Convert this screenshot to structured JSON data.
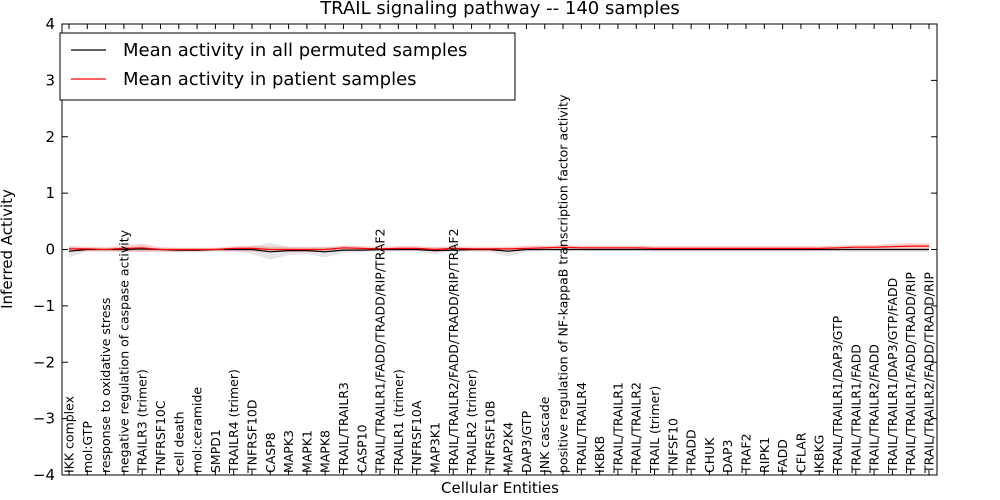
{
  "chart_data": {
    "type": "line",
    "title": "TRAIL signaling pathway -- 140 samples",
    "xlabel": "Cellular Entities",
    "ylabel": "Inferred Activity",
    "ylim": [
      -4,
      4
    ],
    "yticks": [
      -4,
      -3,
      -2,
      -1,
      0,
      1,
      2,
      3,
      4
    ],
    "ytick_labels": [
      "−4",
      "−3",
      "−2",
      "−1",
      "0",
      "1",
      "2",
      "3",
      "4"
    ],
    "grid": false,
    "legend_position": "top-left",
    "categories": [
      "IKK complex",
      "mol:GTP",
      "response to oxidative stress",
      "negative regulation of caspase activity",
      "TRAILR3 (trimer)",
      "TNFRSF10C",
      "cell death",
      "mol:ceramide",
      "SMPD1",
      "TRAILR4 (trimer)",
      "TNFRSF10D",
      "CASP8",
      "MAPK3",
      "MAPK1",
      "MAPK8",
      "TRAIL/TRAILR3",
      "CASP10",
      "TRAIL/TRAILR1/FADD/TRADD/RIP/TRAF2",
      "TRAILR1 (trimer)",
      "TNFRSF10A",
      "MAP3K1",
      "TRAIL/TRAILR2/FADD/TRADD/RIP/TRAF2",
      "TRAILR2 (trimer)",
      "TNFRSF10B",
      "MAP2K4",
      "DAP3/GTP",
      "JNK cascade",
      "positive regulation of NF-kappaB transcription factor activity",
      "TRAIL/TRAILR4",
      "IKBKB",
      "TRAIL/TRAILR1",
      "TRAIL/TRAILR2",
      "TRAIL (trimer)",
      "TNFSF10",
      "TRADD",
      "CHUK",
      "DAP3",
      "TRAF2",
      "RIPK1",
      "FADD",
      "CFLAR",
      "IKBKG",
      "TRAIL/TRAILR1/DAP3/GTP",
      "TRAIL/TRAILR1/FADD",
      "TRAIL/TRAILR2/FADD",
      "TRAIL/TRAILR1/DAP3/GTP/FADD",
      "TRAIL/TRAILR1/FADD/TRADD/RIP",
      "TRAIL/TRAILR2/FADD/TRADD/RIP"
    ],
    "series": [
      {
        "name": "Mean activity in all permuted samples",
        "color": "#000000",
        "values": [
          -0.03,
          0.0,
          0.0,
          0.0,
          0.01,
          0.0,
          -0.01,
          -0.01,
          0.0,
          0.0,
          0.0,
          -0.04,
          -0.02,
          -0.02,
          -0.04,
          -0.01,
          -0.01,
          0.0,
          0.0,
          0.0,
          -0.02,
          -0.01,
          0.0,
          0.0,
          -0.03,
          0.0,
          0.0,
          0.0,
          0.0,
          0.0,
          0.0,
          0.0,
          0.0,
          0.0,
          0.0,
          0.0,
          0.0,
          0.0,
          0.0,
          0.0,
          0.0,
          0.0,
          0.0,
          0.0,
          0.0,
          0.0,
          0.0,
          0.0
        ],
        "band_upper": [
          0.05,
          0.02,
          0.02,
          0.03,
          0.03,
          0.02,
          0.02,
          0.02,
          0.02,
          0.03,
          0.06,
          0.12,
          0.05,
          0.04,
          0.05,
          0.04,
          0.03,
          0.02,
          0.02,
          0.02,
          0.04,
          0.02,
          0.02,
          0.02,
          0.03,
          0.02,
          0.02,
          0.02,
          0.02,
          0.02,
          0.02,
          0.02,
          0.02,
          0.02,
          0.02,
          0.02,
          0.02,
          0.02,
          0.02,
          0.02,
          0.02,
          0.02,
          0.02,
          0.02,
          0.02,
          0.02,
          0.02,
          0.02
        ],
        "band_lower": [
          -0.14,
          -0.03,
          -0.03,
          -0.03,
          -0.03,
          -0.03,
          -0.05,
          -0.05,
          -0.03,
          -0.04,
          -0.08,
          -0.18,
          -0.1,
          -0.08,
          -0.14,
          -0.06,
          -0.05,
          -0.03,
          -0.03,
          -0.04,
          -0.08,
          -0.04,
          -0.03,
          -0.04,
          -0.12,
          -0.04,
          -0.03,
          -0.03,
          -0.03,
          -0.03,
          -0.03,
          -0.03,
          -0.04,
          -0.04,
          -0.04,
          -0.04,
          -0.04,
          -0.04,
          -0.04,
          -0.04,
          -0.04,
          -0.03,
          -0.04,
          -0.04,
          -0.04,
          -0.04,
          -0.04,
          -0.04
        ]
      },
      {
        "name": "Mean activity in patient samples",
        "color": "#ff0000",
        "values": [
          0.01,
          0.01,
          0.0,
          0.02,
          0.03,
          0.0,
          0.0,
          0.0,
          0.0,
          0.02,
          0.02,
          0.0,
          0.0,
          0.0,
          0.0,
          0.03,
          0.02,
          0.01,
          0.02,
          0.02,
          0.0,
          0.02,
          0.01,
          0.01,
          0.01,
          0.02,
          0.03,
          0.04,
          0.03,
          0.03,
          0.03,
          0.03,
          0.02,
          0.02,
          0.02,
          0.02,
          0.02,
          0.02,
          0.02,
          0.02,
          0.02,
          0.02,
          0.03,
          0.04,
          0.04,
          0.05,
          0.06,
          0.06
        ],
        "band_upper": [
          0.06,
          0.05,
          0.04,
          0.07,
          0.1,
          0.04,
          0.03,
          0.03,
          0.03,
          0.06,
          0.07,
          0.05,
          0.04,
          0.04,
          0.04,
          0.07,
          0.06,
          0.05,
          0.06,
          0.06,
          0.04,
          0.06,
          0.05,
          0.05,
          0.05,
          0.07,
          0.07,
          0.08,
          0.07,
          0.07,
          0.07,
          0.07,
          0.06,
          0.06,
          0.06,
          0.06,
          0.06,
          0.06,
          0.06,
          0.06,
          0.06,
          0.06,
          0.07,
          0.08,
          0.08,
          0.1,
          0.11,
          0.11
        ],
        "band_lower": [
          -0.04,
          -0.03,
          -0.03,
          -0.04,
          -0.05,
          -0.04,
          -0.04,
          -0.03,
          -0.03,
          -0.03,
          -0.03,
          -0.04,
          -0.04,
          -0.04,
          -0.04,
          -0.02,
          -0.02,
          -0.03,
          -0.02,
          -0.02,
          -0.03,
          -0.02,
          -0.03,
          -0.03,
          -0.03,
          -0.02,
          -0.01,
          0.0,
          -0.01,
          -0.01,
          -0.01,
          -0.01,
          -0.02,
          -0.02,
          -0.02,
          -0.02,
          -0.02,
          -0.02,
          -0.02,
          -0.02,
          -0.02,
          -0.02,
          -0.01,
          0.0,
          0.0,
          0.0,
          0.01,
          0.01
        ]
      }
    ]
  }
}
